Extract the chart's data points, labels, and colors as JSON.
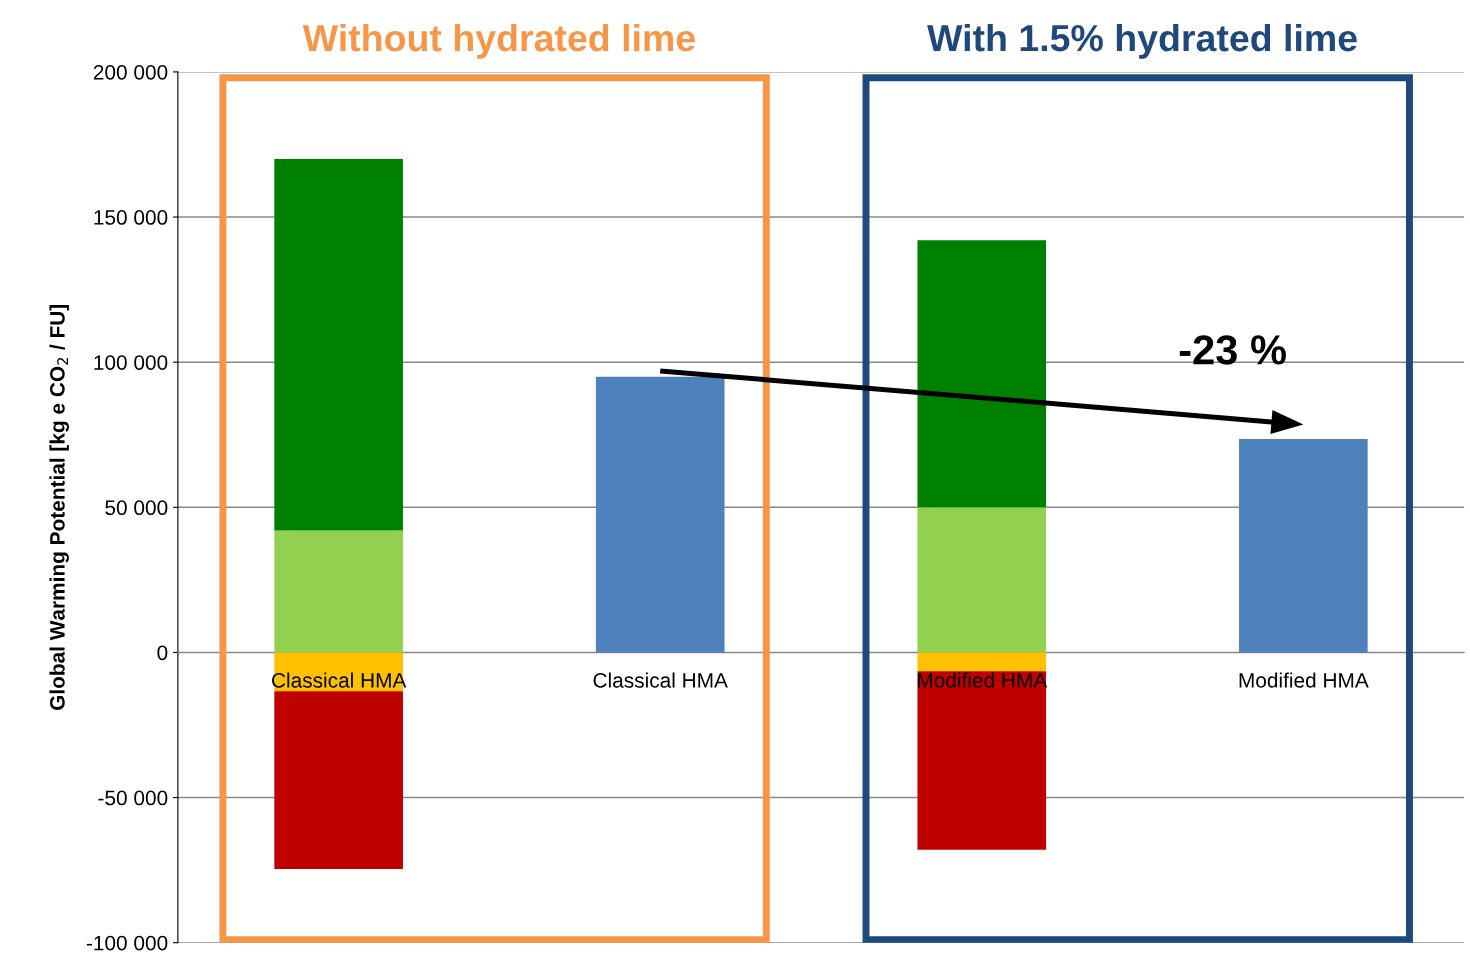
{
  "chart_data": {
    "type": "bar",
    "stacked": true,
    "categories": [
      "Classical HMA",
      "Classical HMA",
      "Modified HMA",
      "Modified HMA"
    ],
    "series": [
      {
        "color": "#92d050",
        "values": [
          42000,
          null,
          50000,
          null
        ]
      },
      {
        "color": "#008000",
        "values": [
          128000,
          null,
          92000,
          null
        ]
      },
      {
        "color": "#ffc000",
        "values": [
          -13400,
          null,
          -6500,
          null
        ]
      },
      {
        "color": "#c00000",
        "values": [
          -61200,
          null,
          -61500,
          null
        ]
      },
      {
        "color": "#4f81bd",
        "values": [
          null,
          95000,
          null,
          73500
        ]
      }
    ],
    "ylabel": "Global Warming Potential [kg e CO$_{2}$ / FU]",
    "ylim": [
      -100000,
      200000
    ],
    "yticks": [
      {
        "value": -100000,
        "label": "-100 000"
      },
      {
        "value": -50000,
        "label": "-50 000"
      },
      0,
      {
        "value": 50000,
        "label": "50 000"
      },
      {
        "value": 100000,
        "label": "100 000"
      },
      {
        "value": 150000,
        "label": "150 000"
      },
      {
        "value": 200000,
        "label": "200 000"
      }
    ],
    "grid": "y",
    "annotations": [
      "Without hydrated lime",
      "With 1.5% hydrated lime",
      "-23 %"
    ]
  }
}
